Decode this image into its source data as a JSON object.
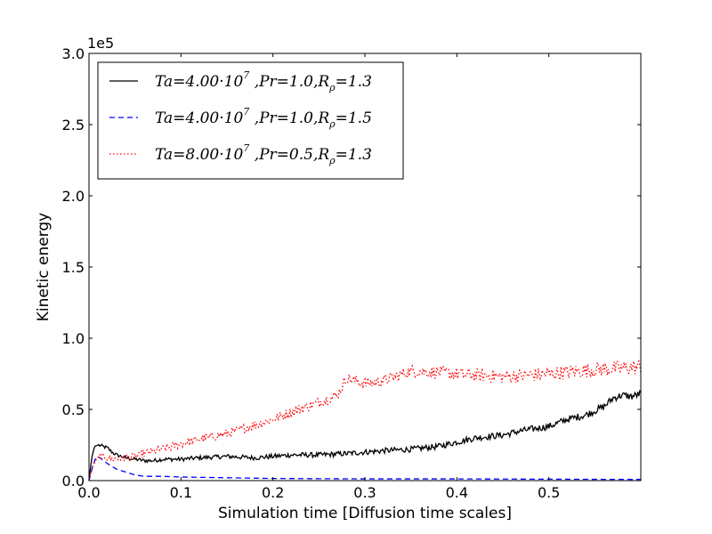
{
  "chart_data": {
    "type": "line",
    "title": "",
    "xlabel": "Simulation time [Diffusion time scales]",
    "ylabel": "Kinetic energy",
    "y_offset_label": "1e5",
    "xlim": [
      0.0,
      0.6
    ],
    "ylim": [
      0.0,
      3.0
    ],
    "xticks": [
      0.0,
      0.1,
      0.2,
      0.3,
      0.4,
      0.5
    ],
    "xtick_labels": [
      "0.0",
      "0.1",
      "0.2",
      "0.3",
      "0.4",
      "0.5"
    ],
    "yticks": [
      0.0,
      0.5,
      1.0,
      1.5,
      2.0,
      2.5,
      3.0
    ],
    "ytick_labels": [
      "0.0",
      "0.5",
      "1.0",
      "1.5",
      "2.0",
      "2.5",
      "3.0"
    ],
    "grid": false,
    "legend_position": "top-left",
    "series": [
      {
        "name": "Ta=4.00·10^7 ,Pr=1.0,R_ρ=1.3",
        "legend": {
          "ta": "4.00·10",
          "ta_exp": "7",
          "pr": "1.0",
          "r": "1.3"
        },
        "color": "#000000",
        "style": "solid",
        "x": [
          0.0,
          0.003,
          0.006,
          0.01,
          0.015,
          0.02,
          0.025,
          0.03,
          0.04,
          0.05,
          0.06,
          0.07,
          0.08,
          0.1,
          0.12,
          0.15,
          0.18,
          0.2,
          0.22,
          0.25,
          0.28,
          0.3,
          0.32,
          0.35,
          0.38,
          0.4,
          0.42,
          0.45,
          0.47,
          0.5,
          0.52,
          0.54,
          0.56,
          0.57,
          0.58,
          0.59,
          0.6
        ],
        "values": [
          0.0,
          0.16,
          0.24,
          0.25,
          0.24,
          0.23,
          0.2,
          0.18,
          0.16,
          0.15,
          0.14,
          0.14,
          0.15,
          0.15,
          0.16,
          0.17,
          0.16,
          0.17,
          0.18,
          0.18,
          0.19,
          0.2,
          0.21,
          0.22,
          0.24,
          0.27,
          0.3,
          0.32,
          0.35,
          0.38,
          0.43,
          0.46,
          0.52,
          0.58,
          0.6,
          0.59,
          0.61
        ],
        "noise": 0.012
      },
      {
        "name": "Ta=4.00·10^7 ,Pr=1.0,R_ρ=1.5",
        "legend": {
          "ta": "4.00·10",
          "ta_exp": "7",
          "pr": "1.0",
          "r": "1.5"
        },
        "color": "#0000ff",
        "style": "dashed",
        "x": [
          0.0,
          0.004,
          0.008,
          0.012,
          0.016,
          0.02,
          0.025,
          0.03,
          0.04,
          0.05,
          0.06,
          0.08,
          0.1,
          0.15,
          0.2,
          0.3,
          0.4,
          0.5,
          0.6
        ],
        "values": [
          0.0,
          0.1,
          0.17,
          0.16,
          0.14,
          0.12,
          0.1,
          0.08,
          0.06,
          0.04,
          0.03,
          0.03,
          0.025,
          0.02,
          0.015,
          0.012,
          0.012,
          0.01,
          0.008
        ],
        "noise": 0.0
      },
      {
        "name": "Ta=8.00·10^7 ,Pr=0.5,R_ρ=1.3",
        "legend": {
          "ta": "8.00·10",
          "ta_exp": "7",
          "pr": "0.5",
          "r": "1.3"
        },
        "color": "#ff0000",
        "style": "dotted",
        "x": [
          0.0,
          0.004,
          0.008,
          0.012,
          0.02,
          0.03,
          0.04,
          0.05,
          0.06,
          0.08,
          0.1,
          0.12,
          0.15,
          0.18,
          0.2,
          0.22,
          0.25,
          0.27,
          0.28,
          0.3,
          0.32,
          0.35,
          0.38,
          0.4,
          0.42,
          0.45,
          0.48,
          0.5,
          0.52,
          0.55,
          0.58,
          0.6
        ],
        "values": [
          0.0,
          0.1,
          0.15,
          0.17,
          0.16,
          0.15,
          0.16,
          0.17,
          0.19,
          0.22,
          0.26,
          0.29,
          0.33,
          0.39,
          0.43,
          0.48,
          0.55,
          0.6,
          0.72,
          0.68,
          0.7,
          0.77,
          0.76,
          0.75,
          0.74,
          0.73,
          0.74,
          0.75,
          0.76,
          0.78,
          0.79,
          0.8
        ],
        "noise": 0.025
      }
    ]
  }
}
